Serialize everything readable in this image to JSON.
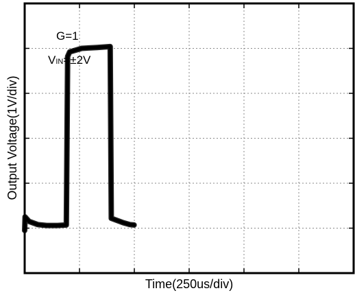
{
  "chart_data": {
    "type": "line",
    "title": "",
    "xlabel": "Time(250us/div)",
    "ylabel": "Output Voltage(1V/div)",
    "annotations": {
      "gain": "G=1",
      "vin_prefix": "V",
      "vin_sub": "IN",
      "vin_suffix": "=±2V"
    },
    "grid": true,
    "x_divisions": 6,
    "y_divisions": 6,
    "xlim": [
      0,
      1500
    ],
    "ylim": [
      -3,
      3
    ],
    "x_units": "us",
    "y_units": "V",
    "series": [
      {
        "x": [
          0,
          2,
          20,
          60,
          100,
          150,
          190,
          196,
          205,
          260,
          330,
          390,
          395,
          450,
          480,
          499
        ],
        "y": [
          -2.05,
          -1.75,
          -1.85,
          -1.92,
          -1.94,
          -1.94,
          -1.93,
          1.82,
          1.92,
          2.0,
          2.02,
          2.04,
          -1.78,
          -1.88,
          -1.92,
          -1.93
        ]
      }
    ]
  }
}
